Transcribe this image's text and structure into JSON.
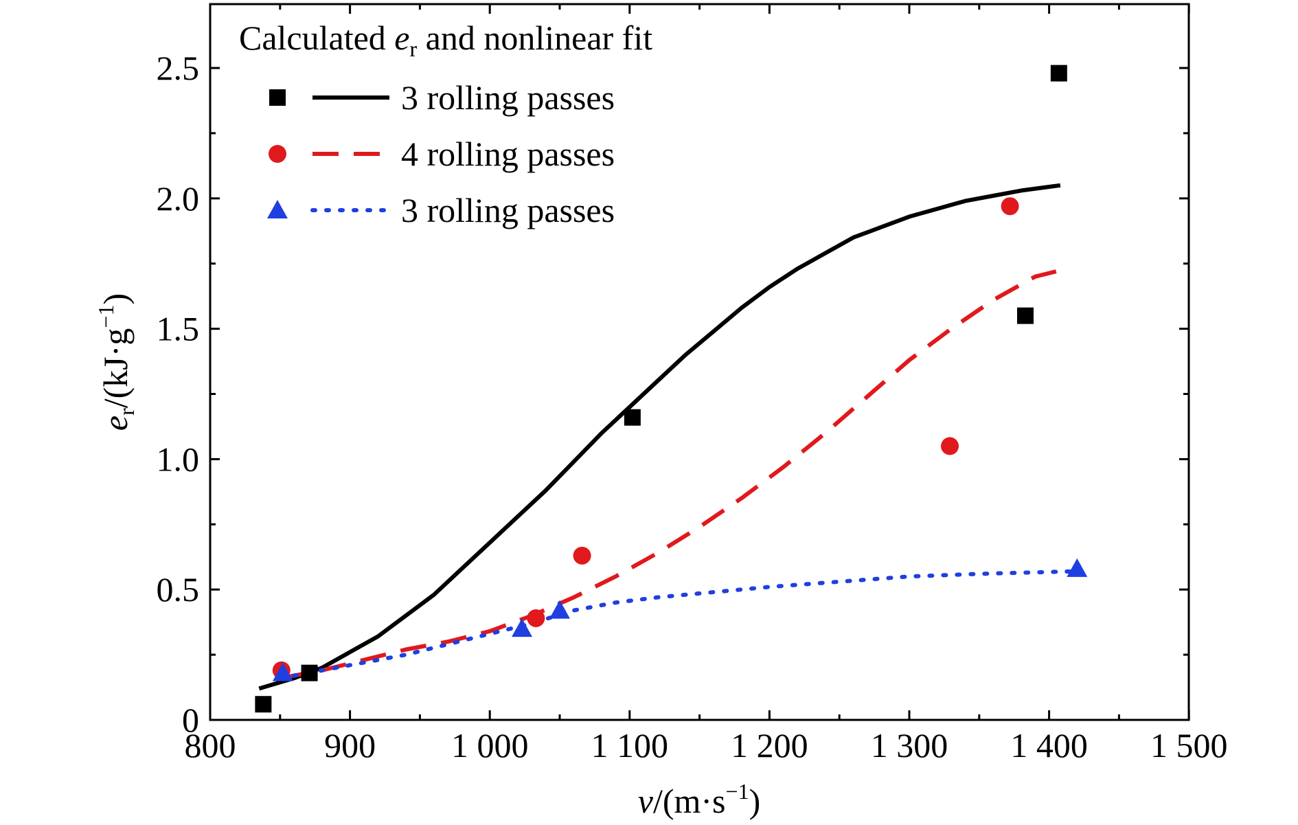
{
  "chart_data": {
    "type": "scatter",
    "legend_title": {
      "prefix": "Calculated ",
      "var": "e",
      "sub": "r",
      "suffix": " and nonlinear fit"
    },
    "legend_position": "top-left",
    "xlabel": {
      "var": "v",
      "unit": "/(m·s",
      "exp": "−1",
      "close": ")"
    },
    "ylabel": {
      "var": "e",
      "sub": "r",
      "unit": "/(kJ·g",
      "exp": "−1",
      "close": ")"
    },
    "xlim": [
      800,
      1500
    ],
    "ylim": [
      0,
      2.75
    ],
    "x_ticks": [
      {
        "value": 800,
        "label": "800"
      },
      {
        "value": 900,
        "label": "900"
      },
      {
        "value": 1000,
        "label": "1 000"
      },
      {
        "value": 1100,
        "label": "1 100"
      },
      {
        "value": 1200,
        "label": "1 200"
      },
      {
        "value": 1300,
        "label": "1 300"
      },
      {
        "value": 1400,
        "label": "1 400"
      },
      {
        "value": 1500,
        "label": "1 500"
      }
    ],
    "y_ticks": [
      {
        "value": 0,
        "label": "0"
      },
      {
        "value": 0.5,
        "label": "0.5"
      },
      {
        "value": 1.0,
        "label": "1.0"
      },
      {
        "value": 1.5,
        "label": "1.5"
      },
      {
        "value": 2.0,
        "label": "2.0"
      },
      {
        "value": 2.5,
        "label": "2.5"
      }
    ],
    "grid": false,
    "series": [
      {
        "name": "3 rolling passes",
        "color": "#000000",
        "marker": "square",
        "line_style": "solid",
        "points": [
          [
            838,
            0.06
          ],
          [
            871,
            0.18
          ],
          [
            1102,
            1.16
          ],
          [
            1383,
            1.55
          ],
          [
            1407,
            2.48
          ]
        ],
        "fit": [
          [
            835,
            0.12
          ],
          [
            860,
            0.16
          ],
          [
            880,
            0.2
          ],
          [
            900,
            0.26
          ],
          [
            920,
            0.32
          ],
          [
            940,
            0.4
          ],
          [
            960,
            0.48
          ],
          [
            980,
            0.58
          ],
          [
            1000,
            0.68
          ],
          [
            1020,
            0.78
          ],
          [
            1040,
            0.88
          ],
          [
            1060,
            0.99
          ],
          [
            1080,
            1.1
          ],
          [
            1100,
            1.2
          ],
          [
            1120,
            1.3
          ],
          [
            1140,
            1.4
          ],
          [
            1160,
            1.49
          ],
          [
            1180,
            1.58
          ],
          [
            1200,
            1.66
          ],
          [
            1220,
            1.73
          ],
          [
            1240,
            1.79
          ],
          [
            1260,
            1.85
          ],
          [
            1280,
            1.89
          ],
          [
            1300,
            1.93
          ],
          [
            1320,
            1.96
          ],
          [
            1340,
            1.99
          ],
          [
            1360,
            2.01
          ],
          [
            1380,
            2.03
          ],
          [
            1408,
            2.05
          ]
        ]
      },
      {
        "name": "4 rolling passes",
        "color": "#e0191d",
        "marker": "circle",
        "line_style": "dashed",
        "points": [
          [
            851,
            0.19
          ],
          [
            1033,
            0.39
          ],
          [
            1066,
            0.63
          ],
          [
            1329,
            1.05
          ],
          [
            1372,
            1.97
          ]
        ],
        "fit": [
          [
            850,
            0.16
          ],
          [
            880,
            0.19
          ],
          [
            910,
            0.23
          ],
          [
            940,
            0.27
          ],
          [
            970,
            0.3
          ],
          [
            1000,
            0.34
          ],
          [
            1030,
            0.4
          ],
          [
            1060,
            0.47
          ],
          [
            1090,
            0.55
          ],
          [
            1120,
            0.64
          ],
          [
            1150,
            0.74
          ],
          [
            1180,
            0.85
          ],
          [
            1210,
            0.97
          ],
          [
            1240,
            1.1
          ],
          [
            1270,
            1.24
          ],
          [
            1300,
            1.38
          ],
          [
            1330,
            1.5
          ],
          [
            1360,
            1.61
          ],
          [
            1390,
            1.7
          ],
          [
            1405,
            1.72
          ]
        ]
      },
      {
        "name": "3 rolling passes",
        "color": "#1f3fe0",
        "marker": "triangle",
        "line_style": "dotted",
        "points": [
          [
            852,
            0.18
          ],
          [
            1023,
            0.35
          ],
          [
            1050,
            0.42
          ],
          [
            1420,
            0.58
          ]
        ],
        "fit": [
          [
            850,
            0.16
          ],
          [
            880,
            0.19
          ],
          [
            910,
            0.22
          ],
          [
            940,
            0.25
          ],
          [
            970,
            0.29
          ],
          [
            1000,
            0.33
          ],
          [
            1030,
            0.37
          ],
          [
            1060,
            0.42
          ],
          [
            1090,
            0.45
          ],
          [
            1120,
            0.47
          ],
          [
            1160,
            0.49
          ],
          [
            1200,
            0.51
          ],
          [
            1250,
            0.53
          ],
          [
            1300,
            0.55
          ],
          [
            1350,
            0.56
          ],
          [
            1420,
            0.57
          ]
        ]
      }
    ]
  }
}
